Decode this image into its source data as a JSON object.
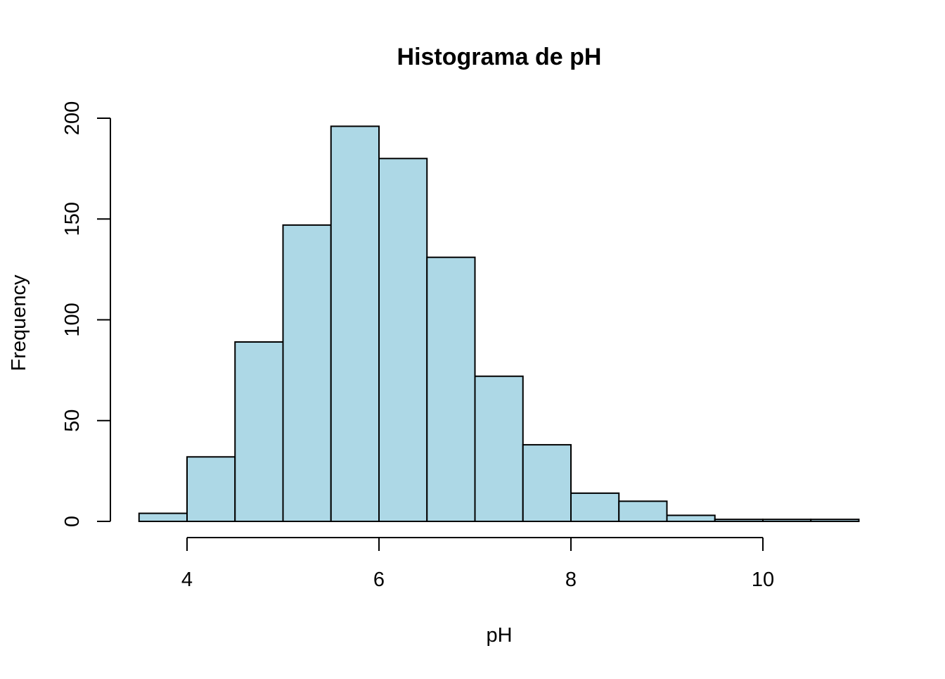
{
  "chart_data": {
    "type": "bar",
    "title": "Histograma de pH",
    "xlabel": "pH",
    "ylabel": "Frequency",
    "bins": [
      {
        "from": 3.5,
        "to": 4.0,
        "count": 4
      },
      {
        "from": 4.0,
        "to": 4.5,
        "count": 32
      },
      {
        "from": 4.5,
        "to": 5.0,
        "count": 89
      },
      {
        "from": 5.0,
        "to": 5.5,
        "count": 147
      },
      {
        "from": 5.5,
        "to": 6.0,
        "count": 196
      },
      {
        "from": 6.0,
        "to": 6.5,
        "count": 180
      },
      {
        "from": 6.5,
        "to": 7.0,
        "count": 131
      },
      {
        "from": 7.0,
        "to": 7.5,
        "count": 72
      },
      {
        "from": 7.5,
        "to": 8.0,
        "count": 38
      },
      {
        "from": 8.0,
        "to": 8.5,
        "count": 14
      },
      {
        "from": 8.5,
        "to": 9.0,
        "count": 10
      },
      {
        "from": 9.0,
        "to": 9.5,
        "count": 3
      },
      {
        "from": 9.5,
        "to": 10.0,
        "count": 1
      },
      {
        "from": 10.0,
        "to": 10.5,
        "count": 1
      },
      {
        "from": 10.5,
        "to": 11.0,
        "count": 1
      }
    ],
    "xlim": [
      3.5,
      11.0
    ],
    "ylim": [
      0,
      200
    ],
    "x_ticks": [
      4,
      6,
      8,
      10
    ],
    "y_ticks": [
      0,
      50,
      100,
      150,
      200
    ],
    "grid": false,
    "bar_color": "#ADD8E6",
    "border_color": "#000000"
  }
}
